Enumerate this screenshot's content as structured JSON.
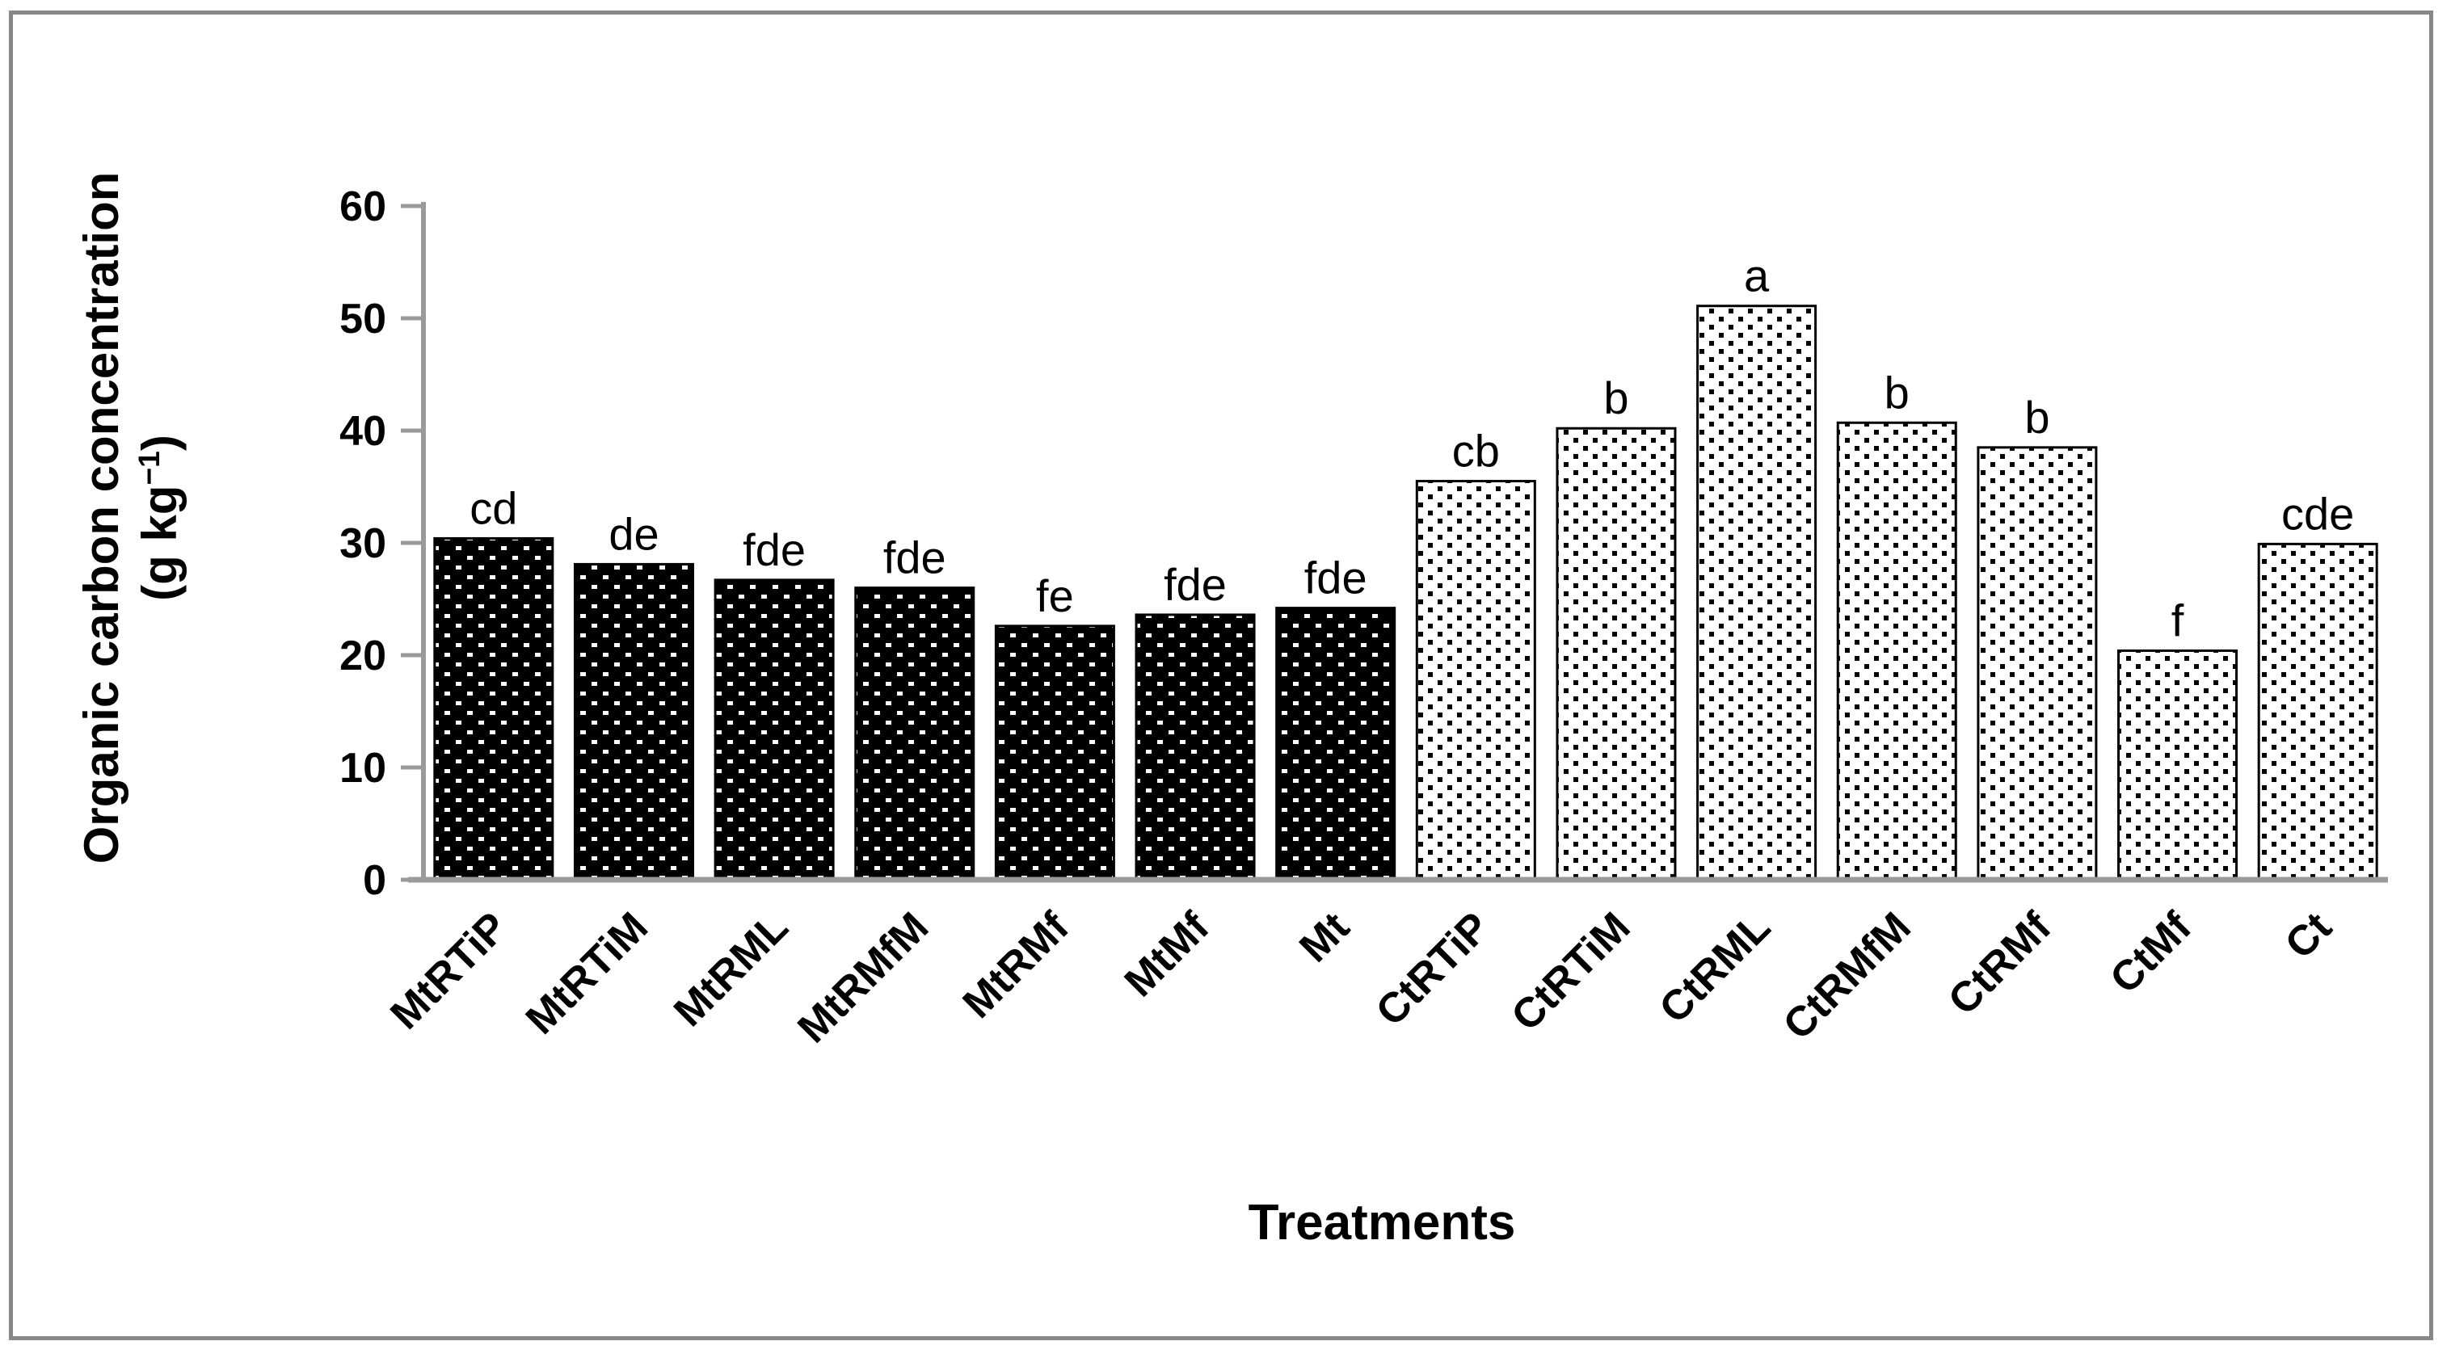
{
  "figure": {
    "background_color": "#ffffff",
    "border_color": "#878787",
    "axis_color": "#9a9a9a",
    "bar_outline_color": "#000000",
    "dark_pattern_colors": {
      "background": "#000000",
      "dots": "#ffffff"
    },
    "light_pattern_colors": {
      "background": "#ffffff",
      "dots": "#000000"
    }
  },
  "chart_data": {
    "type": "bar",
    "title": "",
    "xlabel": "Treatments",
    "ylabel_line1": "Organic carbon concentration",
    "ylabel_line2_prefix": "(g kg",
    "ylabel_superscript": "−1",
    "ylabel_line2_suffix": ")",
    "ylabel_full": "Organic carbon concentration (g kg−1)",
    "categories": [
      "MtRTiP",
      "MtRTiM",
      "MtRML",
      "MtRMfM",
      "MtRMf",
      "MtMf",
      "Mt",
      "CtRTiP",
      "CtRTiM",
      "CtRML",
      "CtRMfM",
      "CtRMf",
      "CtMf",
      "Ct"
    ],
    "values": [
      30.4,
      28.1,
      26.7,
      26.0,
      22.6,
      23.6,
      24.2,
      35.5,
      40.2,
      51.1,
      40.7,
      38.5,
      20.4,
      29.9
    ],
    "significance_letters": [
      "cd",
      "de",
      "fde",
      "fde",
      "fe",
      "fde",
      "fde",
      "cb",
      "b",
      "a",
      "b",
      "b",
      "f",
      "cde"
    ],
    "pattern_by_bar": [
      "dark",
      "dark",
      "dark",
      "dark",
      "dark",
      "dark",
      "dark",
      "light",
      "light",
      "light",
      "light",
      "light",
      "light",
      "light"
    ],
    "y_ticks": [
      60,
      50,
      40,
      30,
      20,
      10,
      0
    ],
    "ylim": [
      0,
      60
    ],
    "grid": false,
    "legend": "none"
  }
}
